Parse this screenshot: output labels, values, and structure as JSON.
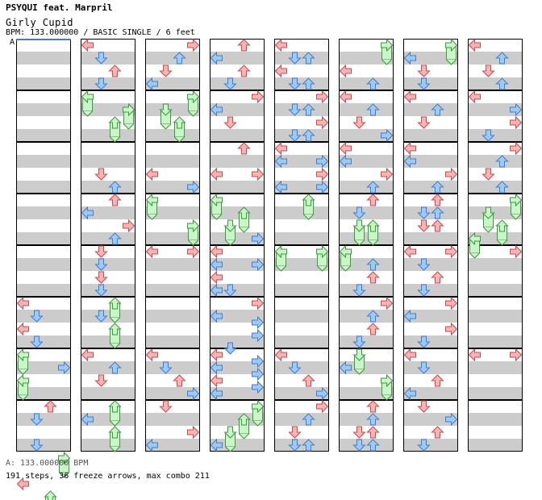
{
  "header": {
    "artist": "PSYQUI feat. Marpril",
    "title": "Girly Cupid",
    "info": "BPM: 133.000000 / BASIC SINGLE / 6 feet",
    "bpm_marker": "A"
  },
  "footer": {
    "bpm_line": "A: 133.000000 BPM",
    "stats_line": "191 steps, 36 freeze arrows, max combo 211"
  },
  "colors": {
    "tap_red": "#f6b4b4",
    "tap_red_stroke": "#d04848",
    "tap_blue": "#9fc8f6",
    "tap_blue_stroke": "#3c7fd0",
    "freeze_fill": "#c9f5c9",
    "freeze_stroke": "#3b9a3b",
    "stripe": "#cccccc",
    "border": "#000000",
    "bpm_line": "#4a78c8"
  },
  "chart_data": {
    "type": "step-chart",
    "lanes": [
      "left",
      "down",
      "up",
      "right"
    ],
    "columns": 8,
    "measures_per_column": 8,
    "rows_per_measure": 16,
    "notes": [
      {
        "c": 0,
        "m": 5,
        "r": 0,
        "l": 0
      },
      {
        "c": 0,
        "m": 5,
        "r": 4,
        "l": 1
      },
      {
        "c": 0,
        "m": 5,
        "r": 8,
        "l": 0
      },
      {
        "c": 0,
        "m": 5,
        "r": 12,
        "l": 1
      },
      {
        "c": 0,
        "m": 6,
        "r": 0,
        "l": 0,
        "f": 1
      },
      {
        "c": 0,
        "m": 6,
        "r": 4,
        "l": 3
      },
      {
        "c": 0,
        "m": 6,
        "r": 8,
        "l": 0,
        "f": 1
      },
      {
        "c": 0,
        "m": 7,
        "r": 0,
        "l": 2
      },
      {
        "c": 0,
        "m": 7,
        "r": 4,
        "l": 1
      },
      {
        "c": 0,
        "m": 7,
        "r": 12,
        "l": 1
      },
      {
        "c": 0,
        "m": 7,
        "r": 16,
        "l": 3,
        "f": 1
      },
      {
        "c": 0,
        "m": 7,
        "r": 24,
        "l": 0
      },
      {
        "c": 0,
        "m": 7,
        "r": 28,
        "l": 2,
        "f": 1
      },
      {
        "c": 1,
        "m": 0,
        "r": 0,
        "l": 0
      },
      {
        "c": 1,
        "m": 0,
        "r": 4,
        "l": 1
      },
      {
        "c": 1,
        "m": 0,
        "r": 8,
        "l": 2
      },
      {
        "c": 1,
        "m": 0,
        "r": 12,
        "l": 1
      },
      {
        "c": 1,
        "m": 1,
        "r": 0,
        "l": 0,
        "f": 1
      },
      {
        "c": 1,
        "m": 1,
        "r": 4,
        "l": 3,
        "f": 1
      },
      {
        "c": 1,
        "m": 1,
        "r": 8,
        "l": 2,
        "f": 1
      },
      {
        "c": 1,
        "m": 2,
        "r": 8,
        "l": 1
      },
      {
        "c": 1,
        "m": 2,
        "r": 12,
        "l": 2
      },
      {
        "c": 1,
        "m": 3,
        "r": 0,
        "l": 2
      },
      {
        "c": 1,
        "m": 3,
        "r": 4,
        "l": 0
      },
      {
        "c": 1,
        "m": 3,
        "r": 8,
        "l": 3
      },
      {
        "c": 1,
        "m": 3,
        "r": 12,
        "l": 2
      },
      {
        "c": 1,
        "m": 4,
        "r": 0,
        "l": 1
      },
      {
        "c": 1,
        "m": 4,
        "r": 4,
        "l": 1
      },
      {
        "c": 1,
        "m": 4,
        "r": 8,
        "l": 1
      },
      {
        "c": 1,
        "m": 4,
        "r": 12,
        "l": 1
      },
      {
        "c": 1,
        "m": 5,
        "r": 0,
        "l": 2,
        "f": 1
      },
      {
        "c": 1,
        "m": 5,
        "r": 4,
        "l": 1
      },
      {
        "c": 1,
        "m": 5,
        "r": 8,
        "l": 2,
        "f": 1
      },
      {
        "c": 1,
        "m": 6,
        "r": 0,
        "l": 0
      },
      {
        "c": 1,
        "m": 6,
        "r": 4,
        "l": 2
      },
      {
        "c": 1,
        "m": 6,
        "r": 8,
        "l": 1
      },
      {
        "c": 1,
        "m": 7,
        "r": 0,
        "l": 2,
        "f": 1
      },
      {
        "c": 1,
        "m": 7,
        "r": 4,
        "l": 0
      },
      {
        "c": 1,
        "m": 7,
        "r": 8,
        "l": 2,
        "f": 1
      },
      {
        "c": 2,
        "m": 0,
        "r": 0,
        "l": 3
      },
      {
        "c": 2,
        "m": 0,
        "r": 4,
        "l": 2
      },
      {
        "c": 2,
        "m": 0,
        "r": 8,
        "l": 1
      },
      {
        "c": 2,
        "m": 0,
        "r": 12,
        "l": 0
      },
      {
        "c": 2,
        "m": 1,
        "r": 0,
        "l": 3,
        "f": 1
      },
      {
        "c": 2,
        "m": 1,
        "r": 4,
        "l": 1,
        "f": 1
      },
      {
        "c": 2,
        "m": 1,
        "r": 8,
        "l": 2,
        "f": 1
      },
      {
        "c": 2,
        "m": 2,
        "r": 8,
        "l": 0
      },
      {
        "c": 2,
        "m": 2,
        "r": 12,
        "l": 3
      },
      {
        "c": 2,
        "m": 3,
        "r": 0,
        "l": 0,
        "f": 1
      },
      {
        "c": 2,
        "m": 3,
        "r": 8,
        "l": 3,
        "f": 1
      },
      {
        "c": 2,
        "m": 4,
        "r": 0,
        "l": 0
      },
      {
        "c": 2,
        "m": 4,
        "r": 0,
        "l": 3
      },
      {
        "c": 2,
        "m": 6,
        "r": 0,
        "l": 0
      },
      {
        "c": 2,
        "m": 6,
        "r": 4,
        "l": 1
      },
      {
        "c": 2,
        "m": 6,
        "r": 8,
        "l": 2
      },
      {
        "c": 2,
        "m": 6,
        "r": 12,
        "l": 3
      },
      {
        "c": 2,
        "m": 7,
        "r": 0,
        "l": 1
      },
      {
        "c": 2,
        "m": 7,
        "r": 8,
        "l": 3
      },
      {
        "c": 2,
        "m": 7,
        "r": 12,
        "l": 0
      },
      {
        "c": 3,
        "m": 0,
        "r": 0,
        "l": 2
      },
      {
        "c": 3,
        "m": 0,
        "r": 4,
        "l": 0
      },
      {
        "c": 3,
        "m": 0,
        "r": 8,
        "l": 2
      },
      {
        "c": 3,
        "m": 0,
        "r": 12,
        "l": 1
      },
      {
        "c": 3,
        "m": 1,
        "r": 0,
        "l": 3
      },
      {
        "c": 3,
        "m": 1,
        "r": 4,
        "l": 0
      },
      {
        "c": 3,
        "m": 1,
        "r": 8,
        "l": 1
      },
      {
        "c": 3,
        "m": 2,
        "r": 0,
        "l": 2
      },
      {
        "c": 3,
        "m": 2,
        "r": 8,
        "l": 0
      },
      {
        "c": 3,
        "m": 2,
        "r": 8,
        "l": 3
      },
      {
        "c": 3,
        "m": 3,
        "r": 0,
        "l": 0,
        "f": 1
      },
      {
        "c": 3,
        "m": 3,
        "r": 4,
        "l": 2,
        "f": 1
      },
      {
        "c": 3,
        "m": 3,
        "r": 8,
        "l": 1,
        "f": 1
      },
      {
        "c": 3,
        "m": 3,
        "r": 12,
        "l": 3
      },
      {
        "c": 3,
        "m": 4,
        "r": 0,
        "l": 0
      },
      {
        "c": 3,
        "m": 4,
        "r": 4,
        "l": 0
      },
      {
        "c": 3,
        "m": 4,
        "r": 4,
        "l": 3
      },
      {
        "c": 3,
        "m": 4,
        "r": 8,
        "l": 0
      },
      {
        "c": 3,
        "m": 4,
        "r": 12,
        "l": 0
      },
      {
        "c": 3,
        "m": 4,
        "r": 12,
        "l": 1
      },
      {
        "c": 3,
        "m": 5,
        "r": 0,
        "l": 3
      },
      {
        "c": 3,
        "m": 5,
        "r": 4,
        "l": 0
      },
      {
        "c": 3,
        "m": 5,
        "r": 6,
        "l": 3
      },
      {
        "c": 3,
        "m": 5,
        "r": 10,
        "l": 3
      },
      {
        "c": 3,
        "m": 5,
        "r": 14,
        "l": 1
      },
      {
        "c": 3,
        "m": 6,
        "r": 0,
        "l": 0
      },
      {
        "c": 3,
        "m": 6,
        "r": 2,
        "l": 3
      },
      {
        "c": 3,
        "m": 6,
        "r": 4,
        "l": 0
      },
      {
        "c": 3,
        "m": 6,
        "r": 6,
        "l": 3
      },
      {
        "c": 3,
        "m": 6,
        "r": 8,
        "l": 0
      },
      {
        "c": 3,
        "m": 6,
        "r": 10,
        "l": 3
      },
      {
        "c": 3,
        "m": 6,
        "r": 12,
        "l": 0
      },
      {
        "c": 3,
        "m": 7,
        "r": 0,
        "l": 3,
        "f": 1
      },
      {
        "c": 3,
        "m": 7,
        "r": 4,
        "l": 2,
        "f": 1
      },
      {
        "c": 3,
        "m": 7,
        "r": 8,
        "l": 1,
        "f": 1
      },
      {
        "c": 3,
        "m": 7,
        "r": 12,
        "l": 0
      },
      {
        "c": 4,
        "m": 0,
        "r": 0,
        "l": 0
      },
      {
        "c": 4,
        "m": 0,
        "r": 4,
        "l": 1
      },
      {
        "c": 4,
        "m": 0,
        "r": 4,
        "l": 2
      },
      {
        "c": 4,
        "m": 0,
        "r": 8,
        "l": 0
      },
      {
        "c": 4,
        "m": 0,
        "r": 12,
        "l": 1
      },
      {
        "c": 4,
        "m": 0,
        "r": 12,
        "l": 2
      },
      {
        "c": 4,
        "m": 1,
        "r": 0,
        "l": 3
      },
      {
        "c": 4,
        "m": 1,
        "r": 4,
        "l": 1
      },
      {
        "c": 4,
        "m": 1,
        "r": 4,
        "l": 2
      },
      {
        "c": 4,
        "m": 1,
        "r": 8,
        "l": 3
      },
      {
        "c": 4,
        "m": 1,
        "r": 12,
        "l": 1
      },
      {
        "c": 4,
        "m": 1,
        "r": 12,
        "l": 2
      },
      {
        "c": 4,
        "m": 2,
        "r": 0,
        "l": 0
      },
      {
        "c": 4,
        "m": 2,
        "r": 4,
        "l": 0
      },
      {
        "c": 4,
        "m": 2,
        "r": 4,
        "l": 3
      },
      {
        "c": 4,
        "m": 2,
        "r": 8,
        "l": 3
      },
      {
        "c": 4,
        "m": 2,
        "r": 12,
        "l": 0
      },
      {
        "c": 4,
        "m": 2,
        "r": 12,
        "l": 3
      },
      {
        "c": 4,
        "m": 3,
        "r": 0,
        "l": 2,
        "f": 1
      },
      {
        "c": 4,
        "m": 4,
        "r": 0,
        "l": 0,
        "f": 1
      },
      {
        "c": 4,
        "m": 4,
        "r": 0,
        "l": 3,
        "f": 1
      },
      {
        "c": 4,
        "m": 6,
        "r": 0,
        "l": 0
      },
      {
        "c": 4,
        "m": 6,
        "r": 4,
        "l": 1
      },
      {
        "c": 4,
        "m": 6,
        "r": 8,
        "l": 2
      },
      {
        "c": 4,
        "m": 6,
        "r": 12,
        "l": 3
      },
      {
        "c": 4,
        "m": 7,
        "r": 0,
        "l": 3
      },
      {
        "c": 4,
        "m": 7,
        "r": 4,
        "l": 2
      },
      {
        "c": 4,
        "m": 7,
        "r": 8,
        "l": 1
      },
      {
        "c": 4,
        "m": 7,
        "r": 12,
        "l": 1
      },
      {
        "c": 4,
        "m": 7,
        "r": 12,
        "l": 2
      },
      {
        "c": 5,
        "m": 0,
        "r": 0,
        "l": 3,
        "f": 1
      },
      {
        "c": 5,
        "m": 0,
        "r": 8,
        "l": 0
      },
      {
        "c": 5,
        "m": 0,
        "r": 12,
        "l": 2
      },
      {
        "c": 5,
        "m": 1,
        "r": 0,
        "l": 0
      },
      {
        "c": 5,
        "m": 1,
        "r": 4,
        "l": 2
      },
      {
        "c": 5,
        "m": 1,
        "r": 8,
        "l": 1
      },
      {
        "c": 5,
        "m": 1,
        "r": 12,
        "l": 3
      },
      {
        "c": 5,
        "m": 2,
        "r": 0,
        "l": 0
      },
      {
        "c": 5,
        "m": 2,
        "r": 4,
        "l": 0
      },
      {
        "c": 5,
        "m": 2,
        "r": 8,
        "l": 3
      },
      {
        "c": 5,
        "m": 2,
        "r": 12,
        "l": 2
      },
      {
        "c": 5,
        "m": 3,
        "r": 0,
        "l": 2
      },
      {
        "c": 5,
        "m": 3,
        "r": 4,
        "l": 1
      },
      {
        "c": 5,
        "m": 3,
        "r": 8,
        "l": 1,
        "f": 1
      },
      {
        "c": 5,
        "m": 3,
        "r": 8,
        "l": 2,
        "f": 1
      },
      {
        "c": 5,
        "m": 4,
        "r": 0,
        "l": 0,
        "f": 1
      },
      {
        "c": 5,
        "m": 4,
        "r": 4,
        "l": 2
      },
      {
        "c": 5,
        "m": 4,
        "r": 8,
        "l": 2
      },
      {
        "c": 5,
        "m": 4,
        "r": 12,
        "l": 1
      },
      {
        "c": 5,
        "m": 5,
        "r": 0,
        "l": 3
      },
      {
        "c": 5,
        "m": 5,
        "r": 4,
        "l": 2
      },
      {
        "c": 5,
        "m": 5,
        "r": 8,
        "l": 2
      },
      {
        "c": 5,
        "m": 5,
        "r": 12,
        "l": 1
      },
      {
        "c": 5,
        "m": 6,
        "r": 0,
        "l": 1,
        "f": 1
      },
      {
        "c": 5,
        "m": 6,
        "r": 4,
        "l": 0
      },
      {
        "c": 5,
        "m": 6,
        "r": 8,
        "l": 3,
        "f": 1
      },
      {
        "c": 5,
        "m": 7,
        "r": 0,
        "l": 2
      },
      {
        "c": 5,
        "m": 7,
        "r": 4,
        "l": 2
      },
      {
        "c": 5,
        "m": 7,
        "r": 8,
        "l": 1
      },
      {
        "c": 5,
        "m": 7,
        "r": 8,
        "l": 2
      },
      {
        "c": 5,
        "m": 7,
        "r": 12,
        "l": 1
      },
      {
        "c": 5,
        "m": 7,
        "r": 12,
        "l": 2
      },
      {
        "c": 6,
        "m": 0,
        "r": 0,
        "l": 3,
        "f": 1
      },
      {
        "c": 6,
        "m": 0,
        "r": 4,
        "l": 0
      },
      {
        "c": 6,
        "m": 0,
        "r": 8,
        "l": 1
      },
      {
        "c": 6,
        "m": 0,
        "r": 12,
        "l": 1
      },
      {
        "c": 6,
        "m": 1,
        "r": 0,
        "l": 0
      },
      {
        "c": 6,
        "m": 1,
        "r": 4,
        "l": 2
      },
      {
        "c": 6,
        "m": 1,
        "r": 8,
        "l": 1
      },
      {
        "c": 6,
        "m": 2,
        "r": 0,
        "l": 0
      },
      {
        "c": 6,
        "m": 2,
        "r": 4,
        "l": 0
      },
      {
        "c": 6,
        "m": 2,
        "r": 8,
        "l": 3
      },
      {
        "c": 6,
        "m": 2,
        "r": 12,
        "l": 2
      },
      {
        "c": 6,
        "m": 3,
        "r": 0,
        "l": 2
      },
      {
        "c": 6,
        "m": 3,
        "r": 4,
        "l": 1
      },
      {
        "c": 6,
        "m": 3,
        "r": 4,
        "l": 2
      },
      {
        "c": 6,
        "m": 3,
        "r": 8,
        "l": 1
      },
      {
        "c": 6,
        "m": 3,
        "r": 8,
        "l": 2
      },
      {
        "c": 6,
        "m": 4,
        "r": 0,
        "l": 0
      },
      {
        "c": 6,
        "m": 4,
        "r": 0,
        "l": 3
      },
      {
        "c": 6,
        "m": 4,
        "r": 4,
        "l": 1
      },
      {
        "c": 6,
        "m": 4,
        "r": 8,
        "l": 2
      },
      {
        "c": 6,
        "m": 4,
        "r": 12,
        "l": 1
      },
      {
        "c": 6,
        "m": 5,
        "r": 0,
        "l": 3
      },
      {
        "c": 6,
        "m": 5,
        "r": 4,
        "l": 0
      },
      {
        "c": 6,
        "m": 5,
        "r": 8,
        "l": 3
      },
      {
        "c": 6,
        "m": 5,
        "r": 12,
        "l": 1
      },
      {
        "c": 6,
        "m": 6,
        "r": 0,
        "l": 0
      },
      {
        "c": 6,
        "m": 6,
        "r": 4,
        "l": 1
      },
      {
        "c": 6,
        "m": 6,
        "r": 8,
        "l": 2
      },
      {
        "c": 6,
        "m": 6,
        "r": 12,
        "l": 0
      },
      {
        "c": 6,
        "m": 7,
        "r": 0,
        "l": 1
      },
      {
        "c": 6,
        "m": 7,
        "r": 4,
        "l": 3
      },
      {
        "c": 6,
        "m": 7,
        "r": 8,
        "l": 2
      },
      {
        "c": 6,
        "m": 7,
        "r": 12,
        "l": 1
      },
      {
        "c": 7,
        "m": 0,
        "r": 0,
        "l": 0
      },
      {
        "c": 7,
        "m": 0,
        "r": 4,
        "l": 2
      },
      {
        "c": 7,
        "m": 0,
        "r": 8,
        "l": 1
      },
      {
        "c": 7,
        "m": 0,
        "r": 12,
        "l": 2
      },
      {
        "c": 7,
        "m": 1,
        "r": 0,
        "l": 0
      },
      {
        "c": 7,
        "m": 1,
        "r": 4,
        "l": 3
      },
      {
        "c": 7,
        "m": 1,
        "r": 8,
        "l": 3
      },
      {
        "c": 7,
        "m": 1,
        "r": 12,
        "l": 1
      },
      {
        "c": 7,
        "m": 2,
        "r": 0,
        "l": 3
      },
      {
        "c": 7,
        "m": 2,
        "r": 4,
        "l": 2
      },
      {
        "c": 7,
        "m": 2,
        "r": 8,
        "l": 1
      },
      {
        "c": 7,
        "m": 2,
        "r": 12,
        "l": 2
      },
      {
        "c": 7,
        "m": 3,
        "r": 0,
        "l": 3,
        "f": 1
      },
      {
        "c": 7,
        "m": 3,
        "r": 4,
        "l": 1,
        "f": 1
      },
      {
        "c": 7,
        "m": 3,
        "r": 8,
        "l": 2,
        "f": 1
      },
      {
        "c": 7,
        "m": 3,
        "r": 12,
        "l": 0,
        "f": 1
      },
      {
        "c": 7,
        "m": 4,
        "r": 0,
        "l": 3
      },
      {
        "c": 7,
        "m": 6,
        "r": 0,
        "l": 0
      },
      {
        "c": 7,
        "m": 6,
        "r": 0,
        "l": 3
      }
    ]
  }
}
